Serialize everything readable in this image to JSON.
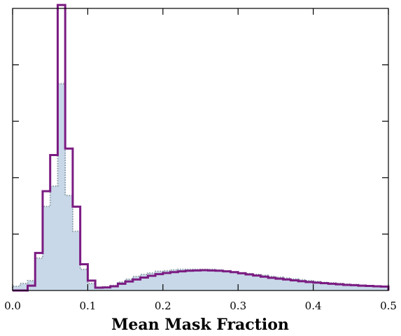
{
  "chart_data": {
    "type": "histogram",
    "title": "",
    "xlabel": "Mean Mask Fraction",
    "ylabel": "",
    "xlim": [
      0.0,
      0.5
    ],
    "ylim": [
      0,
      100
    ],
    "bin_width": 0.01,
    "x_ticks": [
      "0.0",
      "0.1",
      "0.2",
      "0.3",
      "0.4",
      "0.5"
    ],
    "x_tick_values": [
      0.0,
      0.1,
      0.2,
      0.3,
      0.4,
      0.5
    ],
    "y_ticks_unlabeled": [
      20,
      40,
      60,
      80
    ],
    "grid": false,
    "legend": "none",
    "series": [
      {
        "style": "filled-step",
        "fill_color": "#c8d8e8",
        "edge_color": "#8a9aa2",
        "edge_style": "dotted",
        "bin_left": [
          0.0,
          0.01,
          0.02,
          0.03,
          0.04,
          0.05,
          0.06,
          0.07,
          0.08,
          0.09,
          0.1,
          0.11,
          0.12,
          0.13,
          0.14,
          0.15,
          0.16,
          0.17,
          0.18,
          0.19,
          0.2,
          0.21,
          0.22,
          0.23,
          0.24,
          0.25,
          0.26,
          0.27,
          0.28,
          0.29,
          0.3,
          0.31,
          0.32,
          0.33,
          0.34,
          0.35,
          0.36,
          0.37,
          0.38,
          0.39,
          0.4,
          0.41,
          0.42,
          0.43,
          0.44,
          0.45,
          0.46,
          0.47,
          0.48,
          0.49
        ],
        "values": [
          1.5,
          2.5,
          3.5,
          11.5,
          29.8,
          37.0,
          73.3,
          33.7,
          21.0,
          7.5,
          2.5,
          1.2,
          1.3,
          1.8,
          3.0,
          4.0,
          5.0,
          5.7,
          6.2,
          6.8,
          7.0,
          7.3,
          7.5,
          7.5,
          7.5,
          7.5,
          7.5,
          7.3,
          7.0,
          6.6,
          6.3,
          6.0,
          5.7,
          5.4,
          5.0,
          4.7,
          4.4,
          4.1,
          3.8,
          3.5,
          3.2,
          2.9,
          2.7,
          2.5,
          2.3,
          2.1,
          1.9,
          1.7,
          1.5,
          1.3
        ]
      },
      {
        "style": "step",
        "line_color": "#7b1b82",
        "bin_left": [
          0.0,
          0.01,
          0.02,
          0.03,
          0.04,
          0.05,
          0.06,
          0.07,
          0.08,
          0.09,
          0.1,
          0.11,
          0.12,
          0.13,
          0.14,
          0.15,
          0.16,
          0.17,
          0.18,
          0.19,
          0.2,
          0.21,
          0.22,
          0.23,
          0.24,
          0.25,
          0.26,
          0.27,
          0.28,
          0.29,
          0.3,
          0.31,
          0.32,
          0.33,
          0.34,
          0.35,
          0.36,
          0.37,
          0.38,
          0.39,
          0.4,
          0.41,
          0.42,
          0.43,
          0.44,
          0.45,
          0.46,
          0.47,
          0.48,
          0.49
        ],
        "values": [
          0.0,
          0.0,
          1.7,
          13.3,
          35.2,
          48.0,
          101.2,
          50.3,
          29.7,
          9.3,
          3.5,
          1.0,
          1.1,
          1.5,
          2.4,
          3.2,
          3.9,
          4.6,
          5.2,
          5.8,
          6.2,
          6.5,
          6.8,
          7.0,
          7.1,
          7.2,
          7.1,
          7.0,
          6.8,
          6.5,
          6.1,
          5.7,
          5.3,
          4.9,
          4.5,
          4.2,
          3.9,
          3.6,
          3.3,
          3.0,
          2.8,
          2.6,
          2.4,
          2.2,
          2.0,
          1.9,
          1.7,
          1.6,
          1.5,
          1.4
        ]
      }
    ]
  }
}
